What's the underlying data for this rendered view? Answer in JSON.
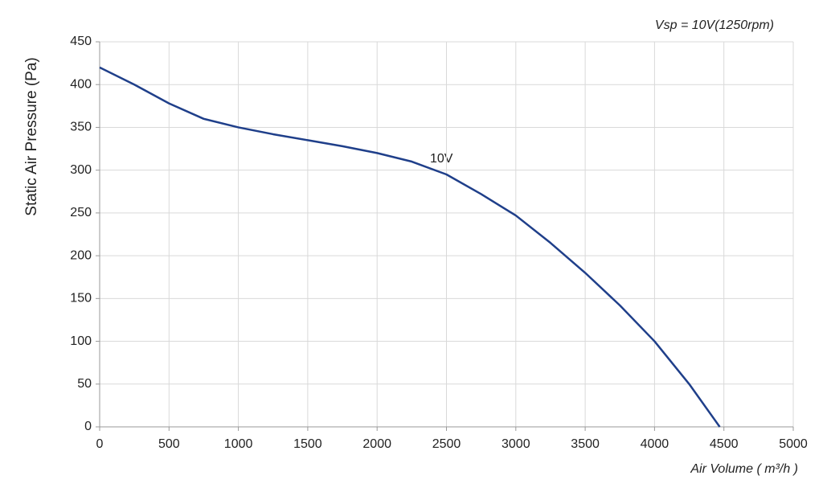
{
  "chart_data": {
    "type": "line",
    "annotation": "Vsp = 10V(1250rpm)",
    "x_label": "Air Volume ( m³/h )",
    "y_label": "Static Air Pressure  (Pa)",
    "x": [
      0,
      250,
      500,
      750,
      1000,
      1250,
      1500,
      1750,
      2000,
      2250,
      2500,
      2750,
      3000,
      3250,
      3500,
      3750,
      4000,
      4250,
      4470
    ],
    "series": [
      {
        "name": "10V",
        "color": "#1f3f8a",
        "values": [
          420,
          400,
          378,
          360,
          350,
          342,
          335,
          328,
          320,
          310,
          295,
          272,
          247,
          215,
          180,
          142,
          100,
          50,
          0
        ]
      }
    ],
    "xlim": [
      0,
      5000
    ],
    "xticks": [
      0,
      500,
      1000,
      1500,
      2000,
      2500,
      3000,
      3500,
      4000,
      4500,
      5000
    ],
    "ylim": [
      0,
      450
    ],
    "yticks": [
      0,
      50,
      100,
      150,
      200,
      250,
      300,
      350,
      400,
      450
    ],
    "grid": true
  }
}
